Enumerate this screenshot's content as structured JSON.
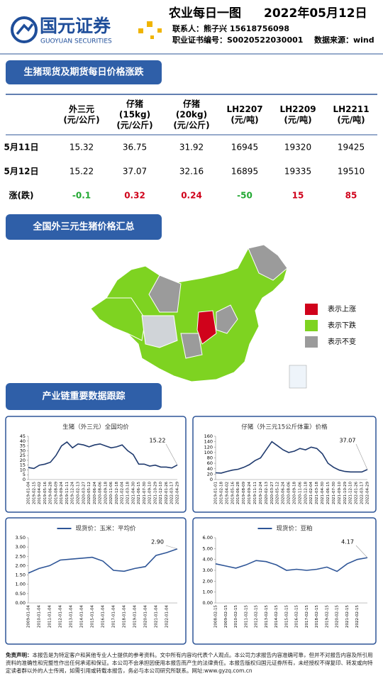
{
  "header": {
    "logo": "国元证券",
    "logo_en": "GUOYUAN SECURITIES",
    "title": "农业每日一图",
    "date": "2022年05月12日",
    "contact": "联系人：熊子兴 15618756098",
    "license": "职业证书编号：S0020522030001",
    "source": "数据来源：wind"
  },
  "sections": [
    "生猪现货及期货每日价格涨跌",
    "全国外三元生猪价格汇总",
    "产业链重要数据跟踪"
  ],
  "table": {
    "header": [
      [
        "外三元",
        "(元/公斤)"
      ],
      [
        "仔猪",
        "(15kg)",
        "(元/公斤)"
      ],
      [
        "仔猪",
        "(20kg)",
        "(元/公斤)"
      ],
      [
        "LH2207",
        "(元/吨)"
      ],
      [
        "LH2209",
        "(元/吨)"
      ],
      [
        "LH2211",
        "(元/吨)"
      ]
    ],
    "rows": [
      [
        "5月11日",
        15.32,
        36.75,
        31.92,
        16945,
        19320,
        19425
      ],
      [
        "5月12日",
        15.22,
        37.07,
        32.16,
        16895,
        19335,
        19510
      ],
      [
        "涨(跌)",
        -0.1,
        0.32,
        0.24,
        -50,
        15,
        85
      ]
    ]
  },
  "map": {
    "legend": [
      {
        "label": "表示上涨",
        "color": "#d0021b"
      },
      {
        "label": "表示下跌",
        "color": "#7ed321"
      },
      {
        "label": "表示不变",
        "color": "#9b9b9b"
      }
    ]
  },
  "charts": [
    {
      "type": "line",
      "title": "生猪（外三元）全国均价",
      "color": "#1f3a6e",
      "ylim": [
        0,
        45
      ],
      "yticks": [
        0,
        5,
        10,
        15,
        20,
        25,
        30,
        35,
        40,
        45
      ],
      "categories": [
        "2019-01-04",
        "2019-02-15",
        "2019-04-02",
        "2019-05-16",
        "2019-06-28",
        "2019-08-09",
        "2019-09-24",
        "2019-11-11",
        "2019-12-24",
        "2020-02-13",
        "2020-03-27",
        "2020-05-12",
        "2020-06-24",
        "2020-08-06",
        "2020-09-18",
        "2020-11-06",
        "2020-12-18",
        "2021-02-04",
        "2021-03-18",
        "2021-04-30",
        "2021-06-15",
        "2021-07-30",
        "2021-09-10",
        "2021-10-29",
        "2021-12-10",
        "2022-01-26",
        "2022-03-17",
        "2022-04-29"
      ],
      "values": [
        12.5,
        11.5,
        15,
        16,
        18,
        25,
        35,
        39,
        33,
        37,
        36,
        34,
        36,
        37,
        35,
        33,
        34,
        36,
        30,
        26,
        16,
        16,
        14,
        15,
        13,
        13,
        12,
        15.22
      ]
    },
    {
      "type": "line",
      "title": "仔猪（外三元15公斤体重）价格",
      "color": "#1f3a6e",
      "ylim": [
        0,
        160
      ],
      "yticks": [
        0,
        20,
        40,
        60,
        80,
        100,
        120,
        140,
        160
      ],
      "categories": [
        "2019-01-01",
        "2019-02-18",
        "2019-04-02",
        "2019-05-16",
        "2019-06-28",
        "2019-08-09",
        "2019-09-24",
        "2019-11-11",
        "2019-12-24",
        "2020-02-13",
        "2020-03-27",
        "2020-05-12",
        "2020-06-24",
        "2020-08-06",
        "2020-09-18",
        "2020-11-06",
        "2020-12-18",
        "2021-02-04",
        "2021-03-18",
        "2021-04-30",
        "2021-06-15",
        "2021-07-30",
        "2021-09-10",
        "2021-10-29",
        "2021-12-10",
        "2022-01-26",
        "2022-03-17",
        "2022-04-29"
      ],
      "values": [
        25,
        24,
        30,
        35,
        38,
        45,
        55,
        70,
        80,
        110,
        140,
        125,
        110,
        100,
        105,
        115,
        110,
        120,
        115,
        95,
        60,
        45,
        35,
        30,
        28,
        28,
        28,
        37.07
      ]
    },
    {
      "type": "line",
      "title": "现货价：玉米：平均价",
      "legend_line": true,
      "color": "#2e5597",
      "ylim": [
        0,
        3.5
      ],
      "yticks": [
        {
          "value": 0,
          "label": "0.00"
        },
        {
          "value": 0.5,
          "label": "0.50"
        },
        {
          "value": 1,
          "label": "1.00"
        },
        {
          "value": 1.5,
          "label": "1.50"
        },
        {
          "value": 2,
          "label": "2.00"
        },
        {
          "value": 2.5,
          "label": "2.50"
        },
        {
          "value": 3,
          "label": "3.00"
        },
        {
          "value": 3.5,
          "label": "3.50"
        }
      ],
      "categories": [
        "2009-01-04",
        "2010-01-04",
        "2011-01-04",
        "2012-01-04",
        "2013-01-04",
        "2014-01-04",
        "2015-01-04",
        "2016-01-04",
        "2017-01-04",
        "2018-01-04",
        "2019-01-04",
        "2020-01-04",
        "2021-01-04",
        "2022-01-04",
        null
      ],
      "values": [
        1.6,
        1.85,
        2.0,
        2.3,
        2.35,
        2.4,
        2.45,
        2.25,
        1.75,
        1.7,
        1.85,
        1.95,
        2.55,
        2.7,
        2.9
      ],
      "value_labels": [
        null,
        null,
        null,
        null,
        null,
        null,
        null,
        null,
        null,
        null,
        null,
        null,
        null,
        null,
        "2.90"
      ]
    },
    {
      "type": "line",
      "title": "现货价：豆粕",
      "legend_line": true,
      "color": "#2e5597",
      "ylim": [
        0,
        6
      ],
      "yticks": [
        {
          "value": 0,
          "label": "0.00"
        },
        {
          "value": 1,
          "label": "1.00"
        },
        {
          "value": 2,
          "label": "2.00"
        },
        {
          "value": 3,
          "label": "3.00"
        },
        {
          "value": 4,
          "label": "4.00"
        },
        {
          "value": 5,
          "label": "5.00"
        },
        {
          "value": 6,
          "label": "6.00"
        }
      ],
      "categories": [
        "2008-02-15",
        "2009-02-15",
        "2010-02-15",
        "2011-02-15",
        "2012-02-15",
        "2013-02-15",
        "2014-02-15",
        "2015-02-15",
        "2016-02-15",
        "2017-02-15",
        "2018-02-15",
        "2019-02-15",
        "2020-02-15",
        "2021-02-15",
        "2022-02-15",
        null
      ],
      "values": [
        3.6,
        3.4,
        3.2,
        3.5,
        3.9,
        3.8,
        3.5,
        3.0,
        3.1,
        3.0,
        3.1,
        3.3,
        2.9,
        3.6,
        4.0,
        4.17
      ]
    }
  ],
  "disclaimer": {
    "label": "免责声明：",
    "text": "本报告是为特定客户和其他专业人士提供的参考资料。文中所有内容均代表个人观点。本公司力求报告内容准确可靠，但并不对报告内容及所引用资料的准确性和完整性作出任何承诺和保证。本公司不会承担因使用本报告而产生的法律责任。本报告版权归国元证券所有，未经授权不得复印、转发或向特定读者群以外的人士传阅，如需引用或转载本报告，务必与本公司研究所联系。网址:www.gyzq.com.cn"
  }
}
